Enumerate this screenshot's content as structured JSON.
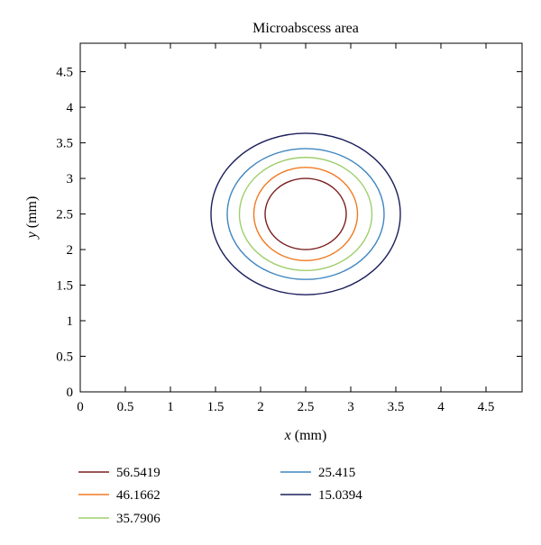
{
  "chart_data": {
    "type": "contour",
    "title": "Microabscess area",
    "xlabel_var": "x",
    "xlabel_unit": " (mm)",
    "ylabel_var": "y",
    "ylabel_unit": " (mm)",
    "xlim": [
      0,
      4.9
    ],
    "ylim": [
      0,
      4.9
    ],
    "x_ticks": [
      "0",
      "0.5",
      "1",
      "1.5",
      "2",
      "2.5",
      "3",
      "3.5",
      "4",
      "4.5"
    ],
    "y_ticks": [
      "0",
      "0.5",
      "1",
      "1.5",
      "2",
      "2.5",
      "3",
      "3.5",
      "4",
      "4.5"
    ],
    "legend_position": "bottom",
    "series": [
      {
        "name": "56.5419",
        "color": "#7a1f1f",
        "center": [
          2.5,
          2.5
        ],
        "x_range": [
          2.03,
          2.93
        ],
        "y_range": [
          2.0,
          3.0
        ]
      },
      {
        "name": "46.1662",
        "color": "#f07a22",
        "center": [
          2.5,
          2.5
        ],
        "x_range": [
          1.91,
          3.06
        ],
        "y_range": [
          1.84,
          3.15
        ]
      },
      {
        "name": "35.7906",
        "color": "#9fce6d",
        "center": [
          2.5,
          2.5
        ],
        "x_range": [
          1.7,
          3.17
        ],
        "y_range": [
          1.71,
          3.3
        ]
      },
      {
        "name": "25.415",
        "color": "#3f86c0",
        "center": [
          2.5,
          2.5
        ],
        "x_range": [
          1.56,
          3.3
        ],
        "y_range": [
          1.57,
          3.41
        ]
      },
      {
        "name": "15.0394",
        "color": "#1c1f5c",
        "center": [
          2.5,
          2.5
        ],
        "x_range": [
          1.37,
          3.47
        ],
        "y_range": [
          1.36,
          3.63
        ]
      }
    ]
  }
}
